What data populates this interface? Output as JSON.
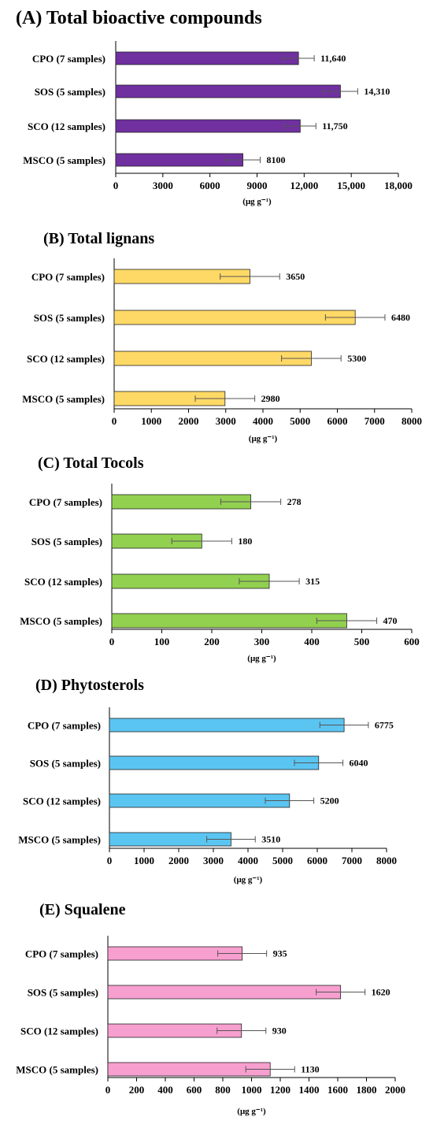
{
  "chart_data": [
    {
      "type": "bar",
      "orientation": "horizontal",
      "title": "(A) Total bioactive compounds",
      "categories": [
        "CPO (7 samples)",
        "SOS (5 samples)",
        "SCO (12 samples)",
        "MSCO (5 samples)"
      ],
      "values": [
        11640,
        14310,
        11750,
        8100
      ],
      "errors": [
        1000,
        1100,
        1000,
        1100
      ],
      "value_labels": [
        "11,640",
        "14,310",
        "11,750",
        "8100"
      ],
      "xlim": [
        0,
        18000
      ],
      "ticks": [
        0,
        3000,
        6000,
        9000,
        12000,
        15000,
        18000
      ],
      "tick_labels": [
        "0",
        "3000",
        "6000",
        "9000",
        "12,000",
        "15,000",
        "18,000"
      ],
      "xlabel": "(μg g⁻¹)",
      "color": "#7030a0"
    },
    {
      "type": "bar",
      "orientation": "horizontal",
      "title": "(B) Total lignans",
      "categories": [
        "CPO (7 samples)",
        "SOS (5 samples)",
        "SCO (12 samples)",
        "MSCO (5 samples)"
      ],
      "values": [
        3650,
        6480,
        5300,
        2980
      ],
      "errors": [
        800,
        800,
        800,
        800
      ],
      "value_labels": [
        "3650",
        "6480",
        "5300",
        "2980"
      ],
      "xlim": [
        0,
        8000
      ],
      "ticks": [
        0,
        1000,
        2000,
        3000,
        4000,
        5000,
        6000,
        7000,
        8000
      ],
      "tick_labels": [
        "0",
        "1000",
        "2000",
        "3000",
        "4000",
        "5000",
        "6000",
        "7000",
        "8000"
      ],
      "xlabel": "(μg g⁻¹)",
      "color": "#ffd966"
    },
    {
      "type": "bar",
      "orientation": "horizontal",
      "title": "(C) Total Tocols",
      "categories": [
        "CPO (7 samples)",
        "SOS (5 samples)",
        "SCO (12 samples)",
        "MSCO (5 samples)"
      ],
      "values": [
        278,
        180,
        315,
        470
      ],
      "errors": [
        60,
        60,
        60,
        60
      ],
      "value_labels": [
        "278",
        "180",
        "315",
        "470"
      ],
      "xlim": [
        0,
        600
      ],
      "ticks": [
        0,
        100,
        200,
        300,
        400,
        500,
        600
      ],
      "tick_labels": [
        "0",
        "100",
        "200",
        "300",
        "400",
        "500",
        "600"
      ],
      "xlabel": "(μg g⁻¹)",
      "color": "#92d050"
    },
    {
      "type": "bar",
      "orientation": "horizontal",
      "title": "(D) Phytosterols",
      "categories": [
        "CPO (7 samples)",
        "SOS (5 samples)",
        "SCO (12 samples)",
        "MSCO (5 samples)"
      ],
      "values": [
        6775,
        6040,
        5200,
        3510
      ],
      "errors": [
        700,
        700,
        700,
        700
      ],
      "value_labels": [
        "6775",
        "6040",
        "5200",
        "3510"
      ],
      "xlim": [
        0,
        8000
      ],
      "ticks": [
        0,
        1000,
        2000,
        3000,
        4000,
        5000,
        6000,
        7000,
        8000
      ],
      "tick_labels": [
        "0",
        "1000",
        "2000",
        "3000",
        "4000",
        "5000",
        "6000",
        "7000",
        "8000"
      ],
      "xlabel": "(μg g⁻¹)",
      "color": "#5bc5f2"
    },
    {
      "type": "bar",
      "orientation": "horizontal",
      "title": "(E) Squalene",
      "categories": [
        "CPO (7 samples)",
        "SOS (5 samples)",
        "SCO (12 samples)",
        "MSCO (5 samples)"
      ],
      "values": [
        935,
        1620,
        930,
        1130
      ],
      "errors": [
        170,
        170,
        170,
        170
      ],
      "value_labels": [
        "935",
        "1620",
        "930",
        "1130"
      ],
      "xlim": [
        0,
        2000
      ],
      "ticks": [
        0,
        200,
        400,
        600,
        800,
        1000,
        1200,
        1400,
        1600,
        1800,
        2000
      ],
      "tick_labels": [
        "0",
        "200",
        "400",
        "600",
        "800",
        "1000",
        "1200",
        "1400",
        "1600",
        "1800",
        "2000"
      ],
      "xlabel": "(μg g⁻¹)",
      "color": "#f79fcf"
    }
  ]
}
